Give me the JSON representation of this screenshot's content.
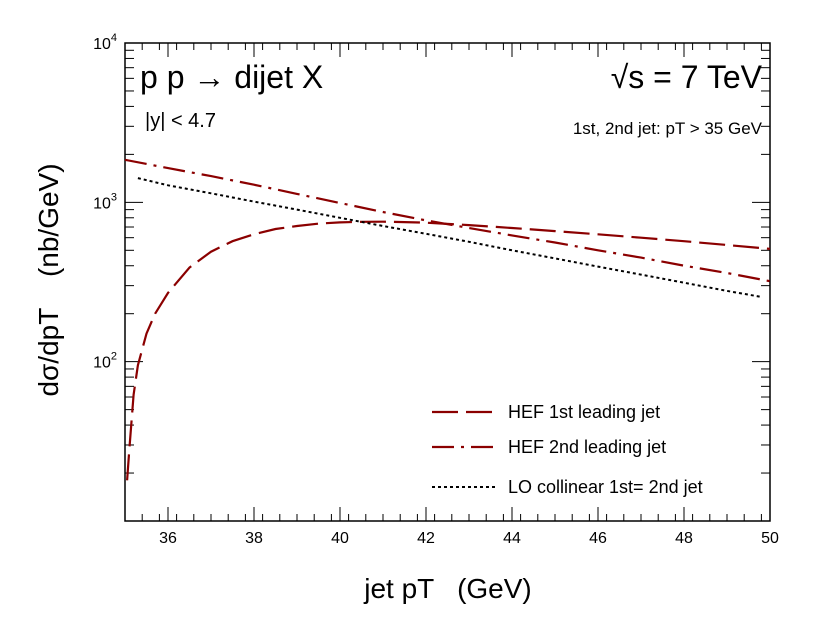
{
  "chart_data": {
    "type": "line",
    "title": "p p → dijet X",
    "energy_label": "√s = 7 TeV",
    "rapidity_cut": "|y| < 4.7",
    "jet_cut": "1st, 2nd jet: pT > 35 GeV",
    "xlabel": "jet pT   (GeV)",
    "ylabel": "dσ/dpT    (nb/GeV)",
    "xlim": [
      35,
      50
    ],
    "ylim": [
      10,
      10000
    ],
    "yscale": "log",
    "x_ticks": [
      36,
      38,
      40,
      42,
      44,
      46,
      48,
      50
    ],
    "y_ticks": [
      {
        "value": 100,
        "base": "10",
        "exp": "2"
      },
      {
        "value": 1000,
        "base": "10",
        "exp": "3"
      },
      {
        "value": 10000,
        "base": "10",
        "exp": "4"
      }
    ],
    "grid": false,
    "legend_position": "bottom-right",
    "series": [
      {
        "name": "HEF 1st leading jet",
        "color": "#8b0000",
        "style": "long-dash",
        "x": [
          35.05,
          35.1,
          35.2,
          35.3,
          35.5,
          35.7,
          36.0,
          36.5,
          37.0,
          37.5,
          38.0,
          38.5,
          39.0,
          39.5,
          40.0,
          40.5,
          41.0,
          41.5,
          42.0,
          43.0,
          44.0,
          45.0,
          46.0,
          47.0,
          48.0,
          49.0,
          50.0
        ],
        "y": [
          18,
          28,
          62,
          95,
          150,
          200,
          270,
          390,
          490,
          570,
          630,
          680,
          710,
          735,
          748,
          755,
          756,
          752,
          745,
          720,
          690,
          660,
          630,
          600,
          570,
          540,
          510
        ]
      },
      {
        "name": "HEF 2nd leading jet",
        "color": "#8b0000",
        "style": "dash-dot",
        "x": [
          35.0,
          36.0,
          37.0,
          38.0,
          39.0,
          40.0,
          41.0,
          42.0,
          43.0,
          44.0,
          45.0,
          46.0,
          47.0,
          48.0,
          49.0,
          50.0
        ],
        "y": [
          1850,
          1640,
          1460,
          1290,
          1130,
          990,
          870,
          770,
          690,
          620,
          560,
          500,
          450,
          400,
          360,
          320
        ]
      },
      {
        "name": "LO collinear  1st= 2nd jet",
        "color": "#000000",
        "style": "dotted",
        "x": [
          35.3,
          36.0,
          37.0,
          38.0,
          39.0,
          40.0,
          41.0,
          42.0,
          43.0,
          44.0,
          45.0,
          46.0,
          47.0,
          48.0,
          49.0,
          49.8
        ],
        "y": [
          1420,
          1280,
          1140,
          1010,
          900,
          800,
          710,
          635,
          565,
          500,
          445,
          395,
          352,
          313,
          278,
          255
        ]
      }
    ]
  }
}
